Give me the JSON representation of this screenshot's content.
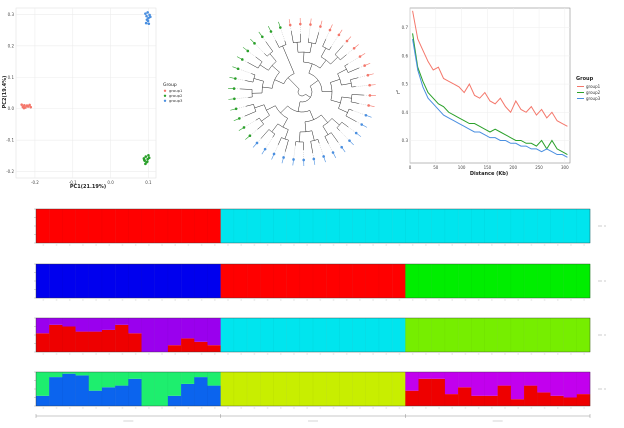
{
  "chart_data": [
    {
      "type": "scatter",
      "xlabel": "PC1(21.19%)",
      "ylabel": "PC2(19.4%)",
      "xlim": [
        -0.25,
        0.12
      ],
      "ylim": [
        -0.22,
        0.32
      ],
      "xticks": [
        "-0.2",
        "-0.1",
        "0.0",
        "0.1"
      ],
      "yticks": [
        "-0.2",
        "-0.1",
        "0.0",
        "0.1",
        "0.2",
        "0.3"
      ],
      "grid": true,
      "legend": {
        "title": "Group",
        "placement": "right",
        "entries": [
          "group1",
          "group2",
          "group3"
        ]
      },
      "colors": {
        "group1": "#f4776b",
        "group2": "#2aa02a",
        "group3": "#4a8fe0"
      },
      "series": [
        {
          "name": "group1",
          "points": [
            [
              -0.235,
              0.013
            ],
            [
              -0.232,
              0.006
            ],
            [
              -0.228,
              0.011
            ],
            [
              -0.225,
              0.004
            ],
            [
              -0.221,
              0.01
            ],
            [
              -0.218,
              0.007
            ],
            [
              -0.214,
              0.012
            ],
            [
              -0.211,
              0.005
            ],
            [
              -0.229,
              0.002
            ]
          ]
        },
        {
          "name": "group2",
          "points": [
            [
              0.088,
              -0.158
            ],
            [
              0.09,
              -0.165
            ],
            [
              0.093,
              -0.152
            ],
            [
              0.095,
              -0.17
            ],
            [
              0.098,
              -0.16
            ],
            [
              0.1,
              -0.148
            ],
            [
              0.092,
              -0.175
            ],
            [
              0.097,
              -0.168
            ],
            [
              0.102,
              -0.156
            ],
            [
              0.089,
              -0.162
            ]
          ]
        },
        {
          "name": "group3",
          "points": [
            [
              0.092,
              0.302
            ],
            [
              0.095,
              0.294
            ],
            [
              0.098,
              0.306
            ],
            [
              0.1,
              0.288
            ],
            [
              0.103,
              0.298
            ],
            [
              0.096,
              0.283
            ],
            [
              0.105,
              0.292
            ],
            [
              0.099,
              0.279
            ],
            [
              0.094,
              0.272
            ],
            [
              0.101,
              0.27
            ]
          ]
        }
      ]
    },
    {
      "type": "other",
      "subtype": "circular-dendrogram",
      "leaf_groups": [
        [
          "group1",
          14
        ],
        [
          "group3",
          14
        ],
        [
          "group2",
          14
        ]
      ]
    },
    {
      "type": "line",
      "xlabel": "Distance (Kb)",
      "ylabel": "r²",
      "xlim": [
        0,
        310
      ],
      "ylim": [
        0.22,
        0.77
      ],
      "xticks": [
        0,
        50,
        100,
        150,
        200,
        250,
        300
      ],
      "yticks": [
        0.3,
        0.4,
        0.5,
        0.6,
        0.7
      ],
      "legend": {
        "title": "Group",
        "placement": "right"
      },
      "x": [
        5,
        15,
        25,
        35,
        45,
        55,
        65,
        75,
        85,
        95,
        105,
        115,
        125,
        135,
        145,
        155,
        165,
        175,
        185,
        195,
        205,
        215,
        225,
        235,
        245,
        255,
        265,
        275,
        285,
        295,
        305
      ],
      "series": [
        {
          "name": "group1",
          "color": "#f4776b",
          "values": [
            0.76,
            0.66,
            0.62,
            0.58,
            0.55,
            0.56,
            0.52,
            0.51,
            0.5,
            0.49,
            0.47,
            0.5,
            0.46,
            0.45,
            0.47,
            0.44,
            0.43,
            0.45,
            0.42,
            0.4,
            0.44,
            0.41,
            0.4,
            0.42,
            0.39,
            0.41,
            0.38,
            0.4,
            0.37,
            0.36,
            0.35
          ]
        },
        {
          "name": "group2",
          "color": "#2aa02a",
          "values": [
            0.68,
            0.56,
            0.51,
            0.47,
            0.45,
            0.43,
            0.42,
            0.4,
            0.39,
            0.38,
            0.37,
            0.36,
            0.36,
            0.35,
            0.34,
            0.33,
            0.34,
            0.33,
            0.32,
            0.31,
            0.3,
            0.3,
            0.29,
            0.29,
            0.28,
            0.3,
            0.27,
            0.3,
            0.27,
            0.26,
            0.25
          ]
        },
        {
          "name": "group3",
          "color": "#4a8fe0",
          "values": [
            0.66,
            0.55,
            0.49,
            0.45,
            0.43,
            0.41,
            0.39,
            0.38,
            0.37,
            0.36,
            0.35,
            0.34,
            0.33,
            0.33,
            0.32,
            0.31,
            0.31,
            0.3,
            0.3,
            0.29,
            0.29,
            0.28,
            0.28,
            0.27,
            0.27,
            0.26,
            0.27,
            0.26,
            0.25,
            0.25,
            0.24
          ]
        }
      ]
    },
    {
      "type": "bar",
      "subtype": "stacked-admixture",
      "n_individuals": 42,
      "rows": [
        {
          "k": 2,
          "segments": [
            {
              "color": "#ff0000",
              "values": [
                1,
                1,
                1,
                1,
                1,
                1,
                1,
                1,
                1,
                1,
                1,
                1,
                1,
                1,
                0,
                0,
                0,
                0,
                0,
                0,
                0,
                0,
                0,
                0,
                0,
                0,
                0,
                0,
                0,
                0,
                0,
                0,
                0,
                0,
                0,
                0,
                0,
                0,
                0,
                0,
                0,
                0
              ]
            },
            {
              "color": "#00e5ee",
              "values": [
                0,
                0,
                0,
                0,
                0,
                0,
                0,
                0,
                0,
                0,
                0,
                0,
                0,
                0,
                1,
                1,
                1,
                1,
                1,
                1,
                1,
                1,
                1,
                1,
                1,
                1,
                1,
                1,
                1,
                1,
                1,
                1,
                1,
                1,
                1,
                1,
                1,
                1,
                1,
                1,
                1,
                1
              ]
            }
          ]
        },
        {
          "k": 3,
          "segments": [
            {
              "color": "#0000ee",
              "values": [
                1,
                1,
                1,
                1,
                1,
                1,
                1,
                1,
                1,
                1,
                1,
                1,
                1,
                1,
                0,
                0,
                0,
                0,
                0,
                0,
                0,
                0,
                0,
                0,
                0,
                0,
                0,
                0,
                0,
                0,
                0,
                0,
                0,
                0,
                0,
                0,
                0,
                0,
                0,
                0,
                0,
                0
              ]
            },
            {
              "color": "#ff0000",
              "values": [
                0,
                0,
                0,
                0,
                0,
                0,
                0,
                0,
                0,
                0,
                0,
                0,
                0,
                0,
                1,
                1,
                1,
                1,
                1,
                1,
                1,
                1,
                1,
                1,
                1,
                1,
                1,
                1,
                0,
                0,
                0,
                0,
                0,
                0,
                0,
                0,
                0,
                0,
                0,
                0,
                0,
                0
              ]
            },
            {
              "color": "#00ee00",
              "values": [
                0,
                0,
                0,
                0,
                0,
                0,
                0,
                0,
                0,
                0,
                0,
                0,
                0,
                0,
                0,
                0,
                0,
                0,
                0,
                0,
                0,
                0,
                0,
                0,
                0,
                0,
                0,
                0,
                1,
                1,
                1,
                1,
                1,
                1,
                1,
                1,
                1,
                1,
                1,
                1,
                1,
                1
              ]
            }
          ]
        },
        {
          "k": 4,
          "segments": [
            {
              "color": "#ee0000",
              "values": [
                0.55,
                0.8,
                0.75,
                0.6,
                0.6,
                0.65,
                0.8,
                0.55,
                0,
                0,
                0.2,
                0.4,
                0.3,
                0.2,
                0,
                0,
                0,
                0,
                0,
                0,
                0,
                0,
                0,
                0,
                0,
                0,
                0,
                0,
                0,
                0,
                0,
                0,
                0,
                0,
                0,
                0,
                0,
                0,
                0,
                0,
                0,
                0
              ]
            },
            {
              "color": "#9a00ee",
              "values": [
                0.45,
                0.2,
                0.25,
                0.4,
                0.4,
                0.35,
                0.2,
                0.45,
                1,
                1,
                0.8,
                0.6,
                0.7,
                0.8,
                0,
                0,
                0,
                0,
                0,
                0,
                0,
                0,
                0,
                0,
                0,
                0,
                0,
                0,
                0,
                0,
                0,
                0,
                0,
                0,
                0,
                0,
                0,
                0,
                0,
                0,
                0,
                0
              ]
            },
            {
              "color": "#00e5ee",
              "values": [
                0,
                0,
                0,
                0,
                0,
                0,
                0,
                0,
                0,
                0,
                0,
                0,
                0,
                0,
                1,
                1,
                1,
                1,
                1,
                1,
                1,
                1,
                1,
                1,
                1,
                1,
                1,
                1,
                0,
                0,
                0,
                0,
                0,
                0,
                0,
                0,
                0,
                0,
                0,
                0,
                0,
                0
              ]
            },
            {
              "color": "#76ee00",
              "values": [
                0,
                0,
                0,
                0,
                0,
                0,
                0,
                0,
                0,
                0,
                0,
                0,
                0,
                0,
                0,
                0,
                0,
                0,
                0,
                0,
                0,
                0,
                0,
                0,
                0,
                0,
                0,
                0,
                1,
                1,
                1,
                1,
                1,
                1,
                1,
                1,
                1,
                1,
                1,
                1,
                1,
                1
              ]
            }
          ]
        },
        {
          "k": 5,
          "segments": [
            {
              "color": "#0b64ee",
              "values": [
                0.3,
                0.85,
                0.95,
                0.9,
                0.45,
                0.55,
                0.6,
                0.8,
                0,
                0,
                0.3,
                0.65,
                0.85,
                0.6,
                0,
                0,
                0,
                0,
                0,
                0,
                0,
                0,
                0,
                0,
                0,
                0,
                0,
                0,
                0,
                0,
                0,
                0,
                0,
                0,
                0,
                0,
                0,
                0,
                0,
                0,
                0,
                0
              ]
            },
            {
              "color": "#1eee6e",
              "values": [
                0.7,
                0.15,
                0.05,
                0.1,
                0.55,
                0.45,
                0.4,
                0.2,
                1,
                1,
                0.7,
                0.35,
                0.15,
                0.4,
                0,
                0,
                0,
                0,
                0,
                0,
                0,
                0,
                0,
                0,
                0,
                0,
                0,
                0,
                0,
                0,
                0,
                0,
                0,
                0,
                0,
                0,
                0,
                0,
                0,
                0,
                0,
                0
              ]
            },
            {
              "color": "#c8ee00",
              "values": [
                0,
                0,
                0,
                0,
                0,
                0,
                0,
                0,
                0,
                0,
                0,
                0,
                0,
                0,
                1,
                1,
                1,
                1,
                1,
                1,
                1,
                1,
                1,
                1,
                1,
                1,
                1,
                1,
                0,
                0,
                0,
                0,
                0,
                0,
                0,
                0,
                0,
                0,
                0,
                0,
                0,
                0
              ]
            },
            {
              "color": "#ee0000",
              "values": [
                0,
                0,
                0,
                0,
                0,
                0,
                0,
                0,
                0,
                0,
                0,
                0,
                0,
                0,
                0,
                0,
                0,
                0,
                0,
                0,
                0,
                0,
                0,
                0,
                0,
                0,
                0,
                0,
                0.45,
                0.8,
                0.8,
                0.35,
                0.55,
                0.3,
                0.3,
                0.6,
                0.2,
                0.6,
                0.4,
                0.3,
                0.25,
                0.35
              ]
            },
            {
              "color": "#c200ee",
              "values": [
                0,
                0,
                0,
                0,
                0,
                0,
                0,
                0,
                0,
                0,
                0,
                0,
                0,
                0,
                0,
                0,
                0,
                0,
                0,
                0,
                0,
                0,
                0,
                0,
                0,
                0,
                0,
                0,
                0.55,
                0.2,
                0.2,
                0.65,
                0.45,
                0.7,
                0.7,
                0.4,
                0.8,
                0.4,
                0.6,
                0.7,
                0.75,
                0.65
              ]
            }
          ]
        }
      ]
    }
  ]
}
